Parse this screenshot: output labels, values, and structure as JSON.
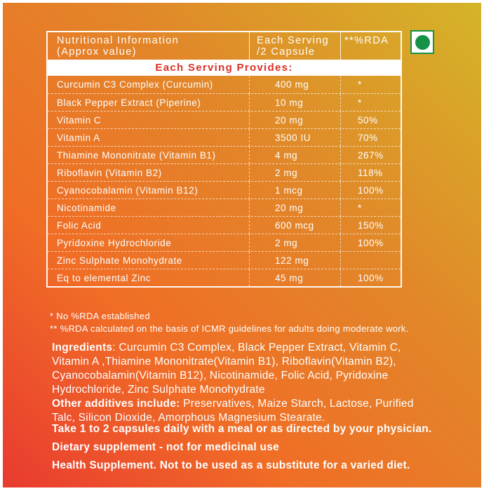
{
  "colors": {
    "gradient_top_right": "#d4b428",
    "gradient_mid_orange": "#f06d26",
    "gradient_bottom_left": "#e93a30",
    "banner_red": "#d93125",
    "veg_green": "#169247",
    "text": "#ffffff"
  },
  "veg_mark": {
    "icon": "veg-dot-icon"
  },
  "table": {
    "header": {
      "col1_line1": "Nutritional Information",
      "col1_line2": "(Approx value)",
      "col2_line1": "Each Serving",
      "col2_line2": "/2 Capsule",
      "col3": "**%RDA"
    },
    "banner": "Each Serving Provides:",
    "rows": [
      {
        "name": "Curcumin C3 Complex (Curcumin)",
        "amount": "400 mg",
        "rda": "*"
      },
      {
        "name": "Black Pepper Extract (Piperine)",
        "amount": "10 mg",
        "rda": "*"
      },
      {
        "name": "Vitamin C",
        "amount": "20 mg",
        "rda": "50%"
      },
      {
        "name": "Vitamin A",
        "amount": "3500 IU",
        "rda": "70%"
      },
      {
        "name": "Thiamine Mononitrate (Vitamin B1)",
        "amount": "4 mg",
        "rda": "267%"
      },
      {
        "name": "Riboflavin (Vitamin B2)",
        "amount": "2 mg",
        "rda": "118%"
      },
      {
        "name": "Cyanocobalamin (Vitamin B12)",
        "amount": "1 mcg",
        "rda": "100%"
      },
      {
        "name": "Nicotinamide",
        "amount": "20 mg",
        "rda": "*"
      },
      {
        "name": "Folic Acid",
        "amount": "600 mcg",
        "rda": "150%"
      },
      {
        "name": "Pyridoxine Hydrochloride",
        "amount": "2 mg",
        "rda": "100%"
      },
      {
        "name": "Zinc Sulphate Monohydrate",
        "amount": "122 mg",
        "rda": ""
      },
      {
        "name": "Eq to elemental Zinc",
        "amount": "45 mg",
        "rda": "100%"
      }
    ]
  },
  "footnotes": [
    {
      "text": "* No %RDA established"
    },
    {
      "text": "** %RDA calculated on the basis of ICMR guidelines for adults doing moderate work."
    }
  ],
  "ingredients": {
    "label": "Ingredients",
    "body": ": Curcumin C3 Complex, Black Pepper Extract, Vitamin C, Vitamin A ,Thiamine Mononitrate(Vitamin B1), Riboflavin(Vitamin B2), Cyanocobalamin(Vitamin B12), Nicotinamide, Folic Acid, Pyridoxine Hydrochloride, Zinc Sulphate Monohydrate"
  },
  "additives": {
    "label": "Other additives include:",
    "body": " Preservatives, Maize Starch, Lactose, Purified Talc, Silicon Dioxide, Amorphous Magnesium Stearate."
  },
  "directives": [
    {
      "text": "Take 1 to 2 capsules daily with a meal or as directed by your physician."
    },
    {
      "text": "Dietary supplement - not for medicinal use"
    },
    {
      "text": "Health Supplement. Not to be used as a substitute for a varied diet."
    }
  ]
}
